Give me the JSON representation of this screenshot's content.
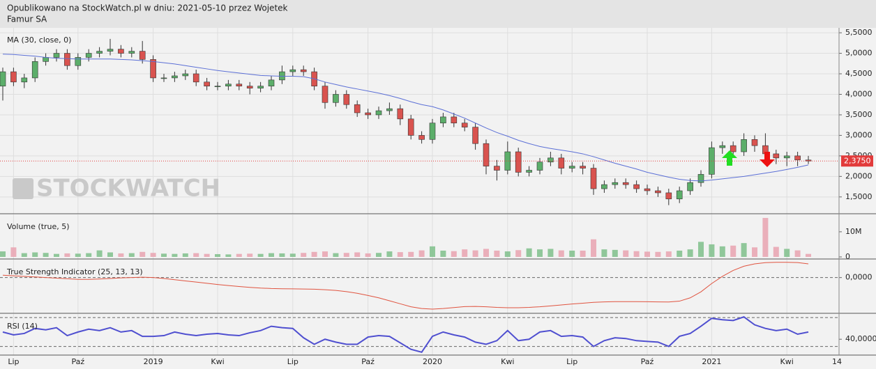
{
  "header": {
    "line1": "Opublikowano na StockWatch.pl w dniu: 2021-05-10 przez Wojetek",
    "line2": "Famur SA"
  },
  "chart_data": [
    {
      "type": "candlestick",
      "title": "MA (30, close, 0)",
      "watermark": "STOCKWATCH",
      "categories": [
        null,
        "Lip",
        null,
        null,
        null,
        null,
        null,
        "Paź",
        null,
        null,
        null,
        null,
        null,
        null,
        "2019",
        null,
        null,
        null,
        null,
        null,
        "Kwi",
        null,
        null,
        null,
        null,
        null,
        null,
        "Lip",
        null,
        null,
        null,
        null,
        null,
        null,
        "Paź",
        null,
        null,
        null,
        null,
        null,
        "2020",
        null,
        null,
        null,
        null,
        null,
        null,
        "Kwi",
        null,
        null,
        null,
        null,
        null,
        "Lip",
        null,
        null,
        null,
        null,
        null,
        null,
        "Paź",
        null,
        null,
        null,
        null,
        null,
        "2021",
        null,
        null,
        null,
        null,
        null,
        null,
        "Kwi",
        null,
        null
      ],
      "x_end_label": "14",
      "open": [
        4.2,
        4.55,
        4.3,
        4.4,
        4.8,
        4.9,
        5.0,
        4.7,
        4.9,
        5.0,
        5.05,
        5.1,
        5.0,
        5.05,
        4.85,
        4.4,
        4.4,
        4.45,
        4.5,
        4.3,
        4.2,
        4.2,
        4.25,
        4.2,
        4.15,
        4.2,
        4.35,
        4.55,
        4.6,
        4.55,
        4.2,
        3.8,
        4.0,
        3.75,
        3.55,
        3.5,
        3.6,
        3.65,
        3.4,
        3.0,
        2.9,
        3.3,
        3.45,
        3.3,
        3.2,
        2.8,
        2.25,
        2.15,
        2.6,
        2.1,
        2.15,
        2.35,
        2.45,
        2.2,
        2.25,
        2.2,
        1.7,
        1.8,
        1.85,
        1.8,
        1.7,
        1.65,
        1.6,
        1.45,
        1.65,
        1.85,
        2.05,
        2.7,
        2.75,
        2.6,
        2.9,
        2.75,
        2.55,
        2.45,
        2.5,
        2.4
      ],
      "high": [
        4.65,
        4.65,
        4.5,
        4.9,
        5.0,
        5.1,
        5.1,
        5.0,
        5.1,
        5.15,
        5.35,
        5.2,
        5.15,
        5.3,
        4.95,
        4.5,
        4.55,
        4.6,
        4.6,
        4.4,
        4.3,
        4.35,
        4.35,
        4.3,
        4.3,
        4.45,
        4.7,
        4.7,
        4.7,
        4.65,
        4.3,
        4.1,
        4.1,
        3.85,
        3.65,
        3.7,
        3.8,
        3.75,
        3.5,
        3.1,
        3.4,
        3.55,
        3.55,
        3.4,
        3.3,
        2.9,
        2.4,
        2.85,
        2.7,
        2.25,
        2.45,
        2.6,
        2.55,
        2.35,
        2.35,
        2.3,
        1.9,
        1.95,
        1.95,
        1.9,
        1.8,
        1.75,
        1.7,
        1.75,
        1.95,
        2.15,
        2.85,
        2.85,
        2.85,
        3.05,
        3.0,
        3.05,
        2.65,
        2.6,
        2.6,
        2.5
      ],
      "low": [
        3.85,
        4.2,
        4.15,
        4.3,
        4.7,
        4.8,
        4.6,
        4.6,
        4.8,
        4.9,
        4.95,
        4.9,
        4.9,
        4.75,
        4.3,
        4.3,
        4.3,
        4.35,
        4.2,
        4.1,
        4.1,
        4.1,
        4.1,
        4.0,
        4.05,
        4.1,
        4.25,
        4.45,
        4.45,
        4.1,
        3.65,
        3.7,
        3.65,
        3.45,
        3.4,
        3.4,
        3.5,
        3.25,
        2.9,
        2.8,
        2.8,
        3.2,
        3.2,
        3.1,
        2.65,
        2.05,
        1.9,
        2.05,
        2.0,
        2.0,
        2.05,
        2.25,
        2.05,
        2.1,
        2.05,
        1.55,
        1.6,
        1.7,
        1.7,
        1.6,
        1.55,
        1.5,
        1.3,
        1.35,
        1.55,
        1.75,
        1.95,
        2.55,
        2.5,
        2.5,
        2.6,
        2.4,
        2.3,
        2.25,
        2.25,
        2.3
      ],
      "close": [
        4.55,
        4.3,
        4.4,
        4.8,
        4.9,
        5.0,
        4.7,
        4.9,
        5.0,
        5.05,
        5.1,
        5.0,
        5.05,
        4.85,
        4.4,
        4.4,
        4.45,
        4.5,
        4.3,
        4.2,
        4.2,
        4.25,
        4.2,
        4.15,
        4.2,
        4.35,
        4.55,
        4.6,
        4.55,
        4.2,
        3.8,
        4.0,
        3.75,
        3.55,
        3.5,
        3.6,
        3.65,
        3.4,
        3.0,
        2.9,
        3.3,
        3.45,
        3.3,
        3.2,
        2.8,
        2.25,
        2.15,
        2.6,
        2.1,
        2.15,
        2.35,
        2.45,
        2.2,
        2.25,
        2.2,
        1.7,
        1.8,
        1.85,
        1.8,
        1.7,
        1.65,
        1.6,
        1.45,
        1.65,
        1.85,
        2.05,
        2.7,
        2.75,
        2.6,
        2.9,
        2.75,
        2.55,
        2.45,
        2.5,
        2.4,
        2.375
      ],
      "up_color": "#5cae6a",
      "down_color": "#d9534f",
      "ma": {
        "color": "#5b6fd6",
        "values": [
          4.98,
          4.97,
          4.95,
          4.93,
          4.9,
          4.88,
          4.87,
          4.86,
          4.86,
          4.86,
          4.86,
          4.85,
          4.84,
          4.82,
          4.8,
          4.77,
          4.74,
          4.7,
          4.66,
          4.62,
          4.58,
          4.55,
          4.52,
          4.49,
          4.46,
          4.45,
          4.44,
          4.44,
          4.43,
          4.38,
          4.3,
          4.24,
          4.18,
          4.13,
          4.08,
          4.03,
          3.97,
          3.9,
          3.82,
          3.75,
          3.7,
          3.62,
          3.52,
          3.42,
          3.3,
          3.18,
          3.07,
          2.98,
          2.88,
          2.8,
          2.73,
          2.68,
          2.64,
          2.6,
          2.55,
          2.48,
          2.4,
          2.32,
          2.25,
          2.18,
          2.1,
          2.04,
          1.98,
          1.93,
          1.9,
          1.89,
          1.91,
          1.94,
          1.97,
          2.0,
          2.04,
          2.08,
          2.12,
          2.17,
          2.22,
          2.28
        ]
      },
      "last_price": {
        "value": 2.375,
        "label": "2,3750"
      },
      "last_price_color": "#e23b3b",
      "ylim": [
        1.09,
        5.62
      ],
      "yticks": [
        {
          "value": 1.5,
          "label": "1,5000"
        },
        {
          "value": 2,
          "label": "2,0000"
        },
        {
          "value": 2.5,
          "label": "2,5000"
        },
        {
          "value": 3,
          "label": "3,0000"
        },
        {
          "value": 3.5,
          "label": "3,5000"
        },
        {
          "value": 4,
          "label": "4,0000"
        },
        {
          "value": 4.5,
          "label": "4,5000"
        },
        {
          "value": 5,
          "label": "5,0000"
        },
        {
          "value": 5.5,
          "label": "5,5000"
        }
      ],
      "grid": true
    },
    {
      "type": "bar",
      "title": "Volume (true, 5)",
      "values": [
        2200000,
        3800000,
        1500000,
        1800000,
        1600000,
        1200000,
        1400000,
        1300000,
        1500000,
        2600000,
        1800000,
        1400000,
        1500000,
        2000000,
        1600000,
        1300000,
        1200000,
        1400000,
        1500000,
        1200000,
        1100000,
        1000000,
        1200000,
        1300000,
        1200000,
        1500000,
        1400000,
        1300000,
        1600000,
        2000000,
        2200000,
        1500000,
        1600000,
        1800000,
        1400000,
        1600000,
        2200000,
        1900000,
        2000000,
        2600000,
        4200000,
        2500000,
        2300000,
        3000000,
        2600000,
        3200000,
        2500000,
        2200000,
        2700000,
        3400000,
        3000000,
        3200000,
        2600000,
        2500000,
        2500000,
        7000000,
        3000000,
        2800000,
        2600000,
        2300000,
        2100000,
        2000000,
        2200000,
        2500000,
        3000000,
        6000000,
        5000000,
        4200000,
        4500000,
        5500000,
        3800000,
        15500000,
        4000000,
        3200000,
        2600000,
        1200000
      ],
      "up_color": "#7fbf8b",
      "down_color": "#e9a3b0",
      "ylim": [
        -830000,
        16900000
      ],
      "yticks": [
        0,
        {
          "value": 10000000,
          "label": "10M"
        }
      ]
    },
    {
      "type": "line",
      "title": "True Strength Indicator (25, 13, 13)",
      "color": "#e0533f",
      "values": [
        2,
        1.5,
        1,
        0.5,
        0,
        -0.5,
        -1,
        -1.5,
        -1.5,
        -1.2,
        -0.8,
        -0.3,
        0,
        0.3,
        0,
        -0.8,
        -1.8,
        -2.8,
        -3.8,
        -4.8,
        -5.8,
        -6.7,
        -7.5,
        -8.2,
        -8.8,
        -9.2,
        -9.4,
        -9.5,
        -9.6,
        -9.8,
        -10.2,
        -10.8,
        -11.8,
        -13.2,
        -15,
        -17,
        -19.5,
        -22,
        -24.5,
        -26,
        -26.5,
        -26,
        -25.2,
        -24.4,
        -24.2,
        -24.5,
        -25,
        -25.3,
        -25.3,
        -25,
        -24.5,
        -23.8,
        -23,
        -22.2,
        -21.5,
        -20.8,
        -20.4,
        -20.2,
        -20.2,
        -20.2,
        -20.3,
        -20.4,
        -20.5,
        -19.8,
        -17,
        -12,
        -5,
        1,
        6,
        9.5,
        11.5,
        12.5,
        12.8,
        12.8,
        12.6,
        11.5
      ],
      "ylim": [
        -30,
        15
      ],
      "yticks": [
        {
          "value": 0,
          "label": "0,0000"
        }
      ]
    },
    {
      "type": "line",
      "title": "RSI (14)",
      "color": "#4f4fd0",
      "values": [
        50,
        46,
        48,
        55,
        53,
        56,
        45,
        50,
        54,
        52,
        56,
        50,
        52,
        44,
        44,
        45,
        50,
        47,
        45,
        47,
        48,
        46,
        45,
        49,
        52,
        58,
        56,
        55,
        42,
        33,
        40,
        36,
        33,
        33,
        43,
        45,
        44,
        35,
        26,
        22,
        44,
        50,
        46,
        43,
        36,
        33,
        38,
        52,
        38,
        40,
        50,
        52,
        44,
        45,
        43,
        30,
        38,
        42,
        41,
        38,
        37,
        36,
        30,
        44,
        48,
        58,
        69,
        67,
        66,
        71,
        60,
        55,
        52,
        54,
        47,
        50
      ],
      "levels": [
        30,
        70
      ],
      "ylim": [
        18,
        75
      ],
      "yticks": [
        {
          "value": 40,
          "label": "40,0000"
        }
      ]
    }
  ]
}
